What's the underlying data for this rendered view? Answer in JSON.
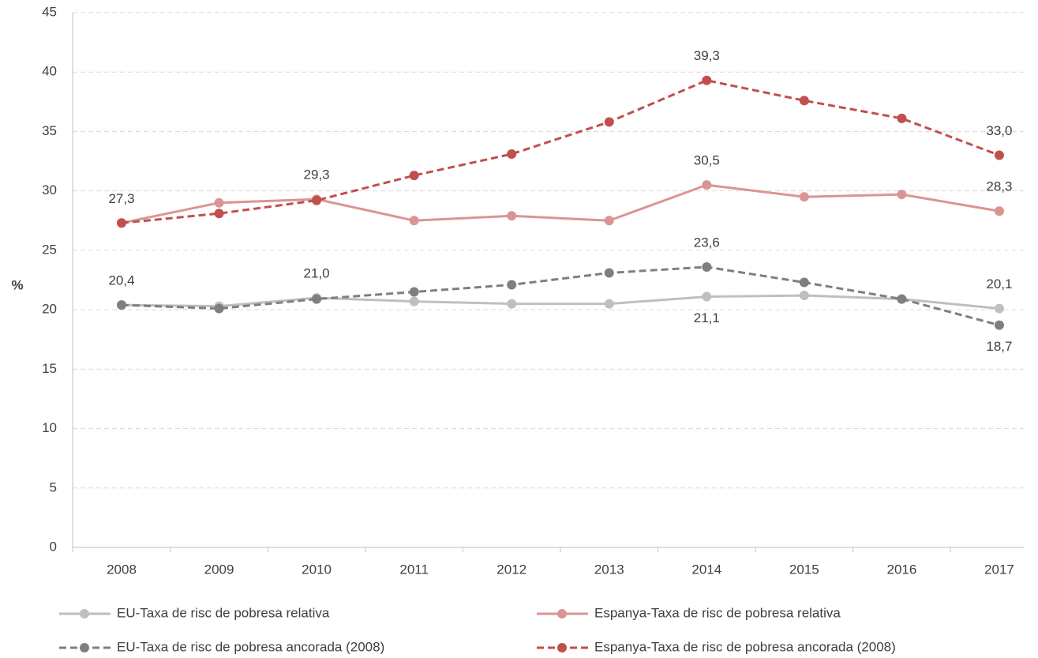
{
  "chart_data": {
    "type": "line",
    "y_label": "%",
    "categories": [
      "2008",
      "2009",
      "2010",
      "2011",
      "2012",
      "2013",
      "2014",
      "2015",
      "2016",
      "2017"
    ],
    "ylim": [
      0,
      45
    ],
    "yticks": [
      0,
      5,
      10,
      15,
      20,
      25,
      30,
      35,
      40,
      45
    ],
    "grid": true,
    "legend": "bottom",
    "series": [
      {
        "name": "EU-Taxa de risc de pobresa relativa",
        "color": "#bfbfbf",
        "dashed": false,
        "values": [
          20.4,
          20.3,
          21.0,
          20.7,
          20.5,
          20.5,
          21.1,
          21.2,
          20.9,
          20.1
        ],
        "value_labels": [
          "20,4",
          null,
          "21,0",
          null,
          null,
          null,
          "21,1",
          null,
          null,
          "20,1"
        ]
      },
      {
        "name": "Espanya-Taxa de risc de pobresa relativa",
        "color": "#d99594",
        "dashed": false,
        "values": [
          27.3,
          29.0,
          29.3,
          27.5,
          27.9,
          27.5,
          30.5,
          29.5,
          29.7,
          28.3
        ],
        "value_labels": [
          "27,3",
          null,
          "29,3",
          null,
          null,
          null,
          "30,5",
          null,
          null,
          "28,3"
        ]
      },
      {
        "name": "EU-Taxa de risc de pobresa ancorada (2008)",
        "color": "#7f7f7f",
        "dashed": true,
        "values": [
          20.4,
          20.1,
          20.9,
          21.5,
          22.1,
          23.1,
          23.6,
          22.3,
          20.9,
          18.7
        ],
        "value_labels": [
          null,
          null,
          null,
          null,
          null,
          null,
          "23,6",
          null,
          null,
          "18,7"
        ]
      },
      {
        "name": "Espanya-Taxa de risc de pobresa ancorada (2008)",
        "color": "#c0504d",
        "dashed": true,
        "values": [
          27.3,
          28.1,
          29.2,
          31.3,
          33.1,
          35.8,
          39.3,
          37.6,
          36.1,
          33.0
        ],
        "value_labels": [
          null,
          null,
          null,
          null,
          null,
          null,
          "39,3",
          null,
          null,
          "33,0"
        ]
      }
    ]
  }
}
